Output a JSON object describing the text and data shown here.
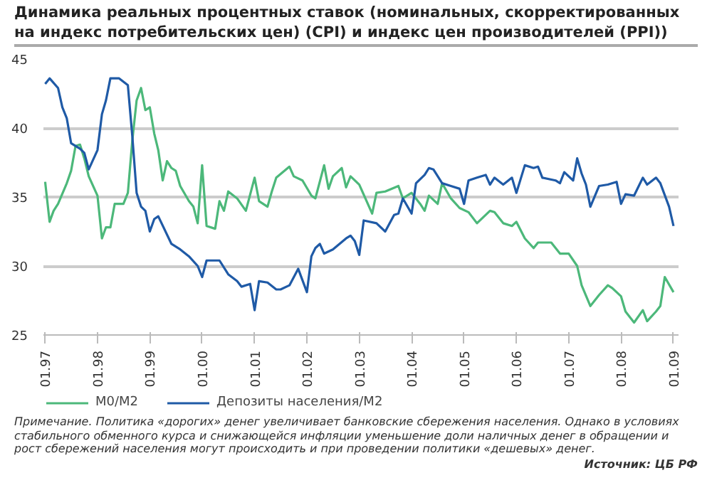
{
  "chart_data": {
    "type": "line",
    "title": "Динамика реальных процентных ставок (номинальных, скорректированных на индекс потребительских цен) (CPI) и индекс цен производителей (PPI))",
    "annotations": [
      "Примечание. Политика «дорогих» денег увеличивает банковские сбережения населения. Однако в условиях стабильного обменного курса и снижающейся инфляции уменьшение доли наличных денег в обращении и рост сбережений населения могут происходить и при проведении политики «дешевых» денег.",
      "Источник: ЦБ РФ"
    ],
    "xlim": [
      "1996-12-20",
      "2009-02-05"
    ],
    "xticks": [
      {
        "value": "1997-01",
        "label": "01.97"
      },
      {
        "value": "1998-01",
        "label": "01.98"
      },
      {
        "value": "1999-01",
        "label": "01.99"
      },
      {
        "value": "2000-01",
        "label": "01.00"
      },
      {
        "value": "2001-01",
        "label": "01.01"
      },
      {
        "value": "2002-01",
        "label": "01.02"
      },
      {
        "value": "2003-01",
        "label": "01.03"
      },
      {
        "value": "2004-01",
        "label": "01.04"
      },
      {
        "value": "2005-01",
        "label": "01.05"
      },
      {
        "value": "2006-01",
        "label": "01.06"
      },
      {
        "value": "2007-01",
        "label": "01.07"
      },
      {
        "value": "2008-01",
        "label": "01.08"
      },
      {
        "value": "2009-01",
        "label": "01.09"
      }
    ],
    "ylim": [
      25,
      45
    ],
    "yticks": [
      25,
      30,
      35,
      40,
      45
    ],
    "grid": "y",
    "legend": "bottom",
    "series": [
      {
        "name": "M0/M2",
        "color": "#4cb87a",
        "x": [
          "1997-01",
          "1997-02",
          "1997-03",
          "1997-04",
          "1997-06",
          "1997-07",
          "1997-08",
          "1997-09",
          "1997-10",
          "1997-11",
          "1998-01",
          "1998-02",
          "1998-03",
          "1998-04",
          "1998-05",
          "1998-07",
          "1998-08",
          "1998-09",
          "1998-10",
          "1998-11",
          "1998-12",
          "1999-01",
          "1999-02",
          "1999-03",
          "1999-04",
          "1999-05",
          "1999-06",
          "1999-07",
          "1999-08",
          "1999-10",
          "1999-11",
          "1999-12",
          "2000-01",
          "2000-02",
          "2000-04",
          "2000-05",
          "2000-06",
          "2000-07",
          "2000-09",
          "2000-11",
          "2001-01",
          "2001-02",
          "2001-04",
          "2001-05",
          "2001-06",
          "2001-09",
          "2001-10",
          "2001-12",
          "2002-02",
          "2002-03",
          "2002-05",
          "2002-06",
          "2002-07",
          "2002-09",
          "2002-10",
          "2002-11",
          "2003-01",
          "2003-04",
          "2003-05",
          "2003-07",
          "2003-10",
          "2003-11",
          "2004-01",
          "2004-03",
          "2004-04",
          "2004-05",
          "2004-07",
          "2004-08",
          "2004-10",
          "2004-12",
          "2005-02",
          "2005-04",
          "2005-07",
          "2005-08",
          "2005-10",
          "2005-12",
          "2006-01",
          "2006-03",
          "2006-05",
          "2006-06",
          "2006-09",
          "2006-11",
          "2007-01",
          "2007-03",
          "2007-04",
          "2007-06",
          "2007-08",
          "2007-10",
          "2007-11",
          "2008-01",
          "2008-02",
          "2008-04",
          "2008-06",
          "2008-07",
          "2008-09",
          "2008-10",
          "2008-11",
          "2009-01"
        ],
        "values": [
          36.1,
          33.2,
          34.0,
          34.5,
          36.0,
          36.9,
          38.7,
          38.8,
          37.8,
          36.5,
          35.1,
          32.0,
          32.8,
          32.8,
          34.5,
          34.5,
          35.3,
          39.1,
          42.0,
          42.9,
          41.3,
          41.5,
          39.6,
          38.4,
          36.2,
          37.6,
          37.1,
          36.9,
          35.8,
          34.7,
          34.3,
          33.1,
          37.3,
          32.9,
          32.7,
          34.7,
          34.0,
          35.4,
          34.9,
          34.0,
          36.4,
          34.7,
          34.3,
          35.4,
          36.4,
          37.2,
          36.5,
          36.2,
          35.1,
          34.9,
          37.3,
          35.6,
          36.5,
          37.1,
          35.7,
          36.5,
          35.9,
          33.8,
          35.3,
          35.4,
          35.8,
          34.9,
          35.3,
          34.5,
          34.0,
          35.1,
          34.5,
          36.0,
          34.9,
          34.2,
          33.9,
          33.1,
          34.0,
          33.9,
          33.1,
          32.9,
          33.2,
          32.0,
          31.3,
          31.7,
          31.7,
          30.9,
          30.9,
          30.0,
          28.6,
          27.1,
          27.9,
          28.6,
          28.4,
          27.8,
          26.7,
          25.9,
          26.8,
          26.0,
          26.7,
          27.1,
          29.2,
          28.1
        ]
      },
      {
        "name": "Депозиты населения/M2",
        "color": "#1f5aa6",
        "x": [
          "1997-01",
          "1997-02",
          "1997-04",
          "1997-05",
          "1997-06",
          "1997-07",
          "1997-09",
          "1997-10",
          "1997-11",
          "1998-01",
          "1998-02",
          "1998-03",
          "1998-04",
          "1998-06",
          "1998-08",
          "1998-09",
          "1998-10",
          "1998-11",
          "1998-12",
          "1999-01",
          "1999-02",
          "1999-03",
          "1999-06",
          "1999-08",
          "1999-10",
          "1999-12",
          "2000-01",
          "2000-02",
          "2000-05",
          "2000-07",
          "2000-09",
          "2000-10",
          "2000-12",
          "2001-01",
          "2001-02",
          "2001-04",
          "2001-06",
          "2001-07",
          "2001-09",
          "2001-11",
          "2002-01",
          "2002-02",
          "2002-03",
          "2002-04",
          "2002-05",
          "2002-07",
          "2002-10",
          "2002-11",
          "2002-12",
          "2003-01",
          "2003-02",
          "2003-05",
          "2003-07",
          "2003-09",
          "2003-10",
          "2003-11",
          "2004-01",
          "2004-02",
          "2004-04",
          "2004-05",
          "2004-06",
          "2004-08",
          "2004-10",
          "2004-12",
          "2005-01",
          "2005-02",
          "2005-04",
          "2005-06",
          "2005-07",
          "2005-08",
          "2005-10",
          "2005-12",
          "2006-01",
          "2006-03",
          "2006-05",
          "2006-06",
          "2006-07",
          "2006-10",
          "2006-11",
          "2006-12",
          "2007-02",
          "2007-03",
          "2007-04",
          "2007-05",
          "2007-06",
          "2007-08",
          "2007-10",
          "2007-12",
          "2008-01",
          "2008-02",
          "2008-04",
          "2008-06",
          "2008-07",
          "2008-09",
          "2008-10",
          "2008-12",
          "2009-01"
        ],
        "values": [
          43.2,
          43.6,
          42.9,
          41.5,
          40.7,
          38.9,
          38.5,
          38.2,
          37.0,
          38.4,
          41.0,
          42.0,
          43.6,
          43.6,
          43.1,
          39.4,
          35.3,
          34.3,
          34.0,
          32.5,
          33.4,
          33.6,
          31.6,
          31.2,
          30.7,
          30.0,
          29.2,
          30.4,
          30.4,
          29.4,
          28.9,
          28.5,
          28.7,
          26.8,
          28.9,
          28.8,
          28.3,
          28.3,
          28.6,
          29.8,
          28.1,
          30.7,
          31.3,
          31.6,
          30.9,
          31.2,
          32.0,
          32.2,
          31.8,
          30.8,
          33.3,
          33.1,
          32.5,
          33.7,
          33.8,
          34.9,
          33.8,
          36.0,
          36.6,
          37.1,
          37.0,
          36.0,
          35.8,
          35.6,
          34.5,
          36.2,
          36.4,
          36.6,
          35.9,
          36.4,
          35.9,
          36.4,
          35.3,
          37.3,
          37.1,
          37.2,
          36.4,
          36.2,
          36.0,
          36.8,
          36.2,
          37.8,
          36.7,
          35.9,
          34.3,
          35.8,
          35.9,
          36.1,
          34.5,
          35.2,
          35.1,
          36.4,
          35.9,
          36.4,
          36.0,
          34.3,
          32.9
        ]
      }
    ]
  }
}
